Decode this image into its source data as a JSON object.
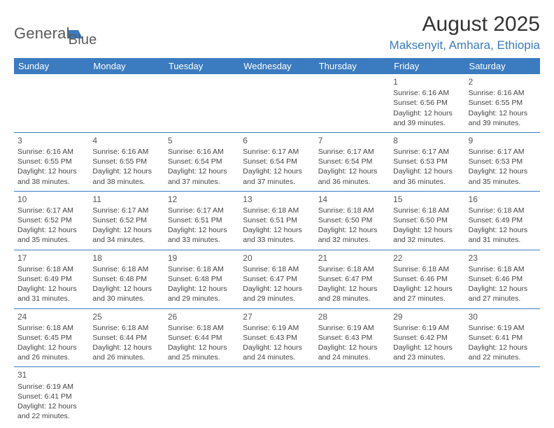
{
  "logo": {
    "general": "General",
    "blue": "Blue"
  },
  "title": "August 2025",
  "location": "Maksenyit, Amhara, Ethiopia",
  "colors": {
    "header_bg": "#3b7bbf",
    "header_text": "#ffffff",
    "text": "#444444",
    "border": "#3b7bbf",
    "logo_gray": "#5b5b5b",
    "logo_blue": "#3b7bbf"
  },
  "weekdays": [
    "Sunday",
    "Monday",
    "Tuesday",
    "Wednesday",
    "Thursday",
    "Friday",
    "Saturday"
  ],
  "weeks": [
    [
      null,
      null,
      null,
      null,
      null,
      {
        "d": "1",
        "sr": "Sunrise: 6:16 AM",
        "ss": "Sunset: 6:56 PM",
        "dl1": "Daylight: 12 hours",
        "dl2": "and 39 minutes."
      },
      {
        "d": "2",
        "sr": "Sunrise: 6:16 AM",
        "ss": "Sunset: 6:55 PM",
        "dl1": "Daylight: 12 hours",
        "dl2": "and 39 minutes."
      }
    ],
    [
      {
        "d": "3",
        "sr": "Sunrise: 6:16 AM",
        "ss": "Sunset: 6:55 PM",
        "dl1": "Daylight: 12 hours",
        "dl2": "and 38 minutes."
      },
      {
        "d": "4",
        "sr": "Sunrise: 6:16 AM",
        "ss": "Sunset: 6:55 PM",
        "dl1": "Daylight: 12 hours",
        "dl2": "and 38 minutes."
      },
      {
        "d": "5",
        "sr": "Sunrise: 6:16 AM",
        "ss": "Sunset: 6:54 PM",
        "dl1": "Daylight: 12 hours",
        "dl2": "and 37 minutes."
      },
      {
        "d": "6",
        "sr": "Sunrise: 6:17 AM",
        "ss": "Sunset: 6:54 PM",
        "dl1": "Daylight: 12 hours",
        "dl2": "and 37 minutes."
      },
      {
        "d": "7",
        "sr": "Sunrise: 6:17 AM",
        "ss": "Sunset: 6:54 PM",
        "dl1": "Daylight: 12 hours",
        "dl2": "and 36 minutes."
      },
      {
        "d": "8",
        "sr": "Sunrise: 6:17 AM",
        "ss": "Sunset: 6:53 PM",
        "dl1": "Daylight: 12 hours",
        "dl2": "and 36 minutes."
      },
      {
        "d": "9",
        "sr": "Sunrise: 6:17 AM",
        "ss": "Sunset: 6:53 PM",
        "dl1": "Daylight: 12 hours",
        "dl2": "and 35 minutes."
      }
    ],
    [
      {
        "d": "10",
        "sr": "Sunrise: 6:17 AM",
        "ss": "Sunset: 6:52 PM",
        "dl1": "Daylight: 12 hours",
        "dl2": "and 35 minutes."
      },
      {
        "d": "11",
        "sr": "Sunrise: 6:17 AM",
        "ss": "Sunset: 6:52 PM",
        "dl1": "Daylight: 12 hours",
        "dl2": "and 34 minutes."
      },
      {
        "d": "12",
        "sr": "Sunrise: 6:17 AM",
        "ss": "Sunset: 6:51 PM",
        "dl1": "Daylight: 12 hours",
        "dl2": "and 33 minutes."
      },
      {
        "d": "13",
        "sr": "Sunrise: 6:18 AM",
        "ss": "Sunset: 6:51 PM",
        "dl1": "Daylight: 12 hours",
        "dl2": "and 33 minutes."
      },
      {
        "d": "14",
        "sr": "Sunrise: 6:18 AM",
        "ss": "Sunset: 6:50 PM",
        "dl1": "Daylight: 12 hours",
        "dl2": "and 32 minutes."
      },
      {
        "d": "15",
        "sr": "Sunrise: 6:18 AM",
        "ss": "Sunset: 6:50 PM",
        "dl1": "Daylight: 12 hours",
        "dl2": "and 32 minutes."
      },
      {
        "d": "16",
        "sr": "Sunrise: 6:18 AM",
        "ss": "Sunset: 6:49 PM",
        "dl1": "Daylight: 12 hours",
        "dl2": "and 31 minutes."
      }
    ],
    [
      {
        "d": "17",
        "sr": "Sunrise: 6:18 AM",
        "ss": "Sunset: 6:49 PM",
        "dl1": "Daylight: 12 hours",
        "dl2": "and 31 minutes."
      },
      {
        "d": "18",
        "sr": "Sunrise: 6:18 AM",
        "ss": "Sunset: 6:48 PM",
        "dl1": "Daylight: 12 hours",
        "dl2": "and 30 minutes."
      },
      {
        "d": "19",
        "sr": "Sunrise: 6:18 AM",
        "ss": "Sunset: 6:48 PM",
        "dl1": "Daylight: 12 hours",
        "dl2": "and 29 minutes."
      },
      {
        "d": "20",
        "sr": "Sunrise: 6:18 AM",
        "ss": "Sunset: 6:47 PM",
        "dl1": "Daylight: 12 hours",
        "dl2": "and 29 minutes."
      },
      {
        "d": "21",
        "sr": "Sunrise: 6:18 AM",
        "ss": "Sunset: 6:47 PM",
        "dl1": "Daylight: 12 hours",
        "dl2": "and 28 minutes."
      },
      {
        "d": "22",
        "sr": "Sunrise: 6:18 AM",
        "ss": "Sunset: 6:46 PM",
        "dl1": "Daylight: 12 hours",
        "dl2": "and 27 minutes."
      },
      {
        "d": "23",
        "sr": "Sunrise: 6:18 AM",
        "ss": "Sunset: 6:46 PM",
        "dl1": "Daylight: 12 hours",
        "dl2": "and 27 minutes."
      }
    ],
    [
      {
        "d": "24",
        "sr": "Sunrise: 6:18 AM",
        "ss": "Sunset: 6:45 PM",
        "dl1": "Daylight: 12 hours",
        "dl2": "and 26 minutes."
      },
      {
        "d": "25",
        "sr": "Sunrise: 6:18 AM",
        "ss": "Sunset: 6:44 PM",
        "dl1": "Daylight: 12 hours",
        "dl2": "and 26 minutes."
      },
      {
        "d": "26",
        "sr": "Sunrise: 6:18 AM",
        "ss": "Sunset: 6:44 PM",
        "dl1": "Daylight: 12 hours",
        "dl2": "and 25 minutes."
      },
      {
        "d": "27",
        "sr": "Sunrise: 6:19 AM",
        "ss": "Sunset: 6:43 PM",
        "dl1": "Daylight: 12 hours",
        "dl2": "and 24 minutes."
      },
      {
        "d": "28",
        "sr": "Sunrise: 6:19 AM",
        "ss": "Sunset: 6:43 PM",
        "dl1": "Daylight: 12 hours",
        "dl2": "and 24 minutes."
      },
      {
        "d": "29",
        "sr": "Sunrise: 6:19 AM",
        "ss": "Sunset: 6:42 PM",
        "dl1": "Daylight: 12 hours",
        "dl2": "and 23 minutes."
      },
      {
        "d": "30",
        "sr": "Sunrise: 6:19 AM",
        "ss": "Sunset: 6:41 PM",
        "dl1": "Daylight: 12 hours",
        "dl2": "and 22 minutes."
      }
    ],
    [
      {
        "d": "31",
        "sr": "Sunrise: 6:19 AM",
        "ss": "Sunset: 6:41 PM",
        "dl1": "Daylight: 12 hours",
        "dl2": "and 22 minutes."
      },
      null,
      null,
      null,
      null,
      null,
      null
    ]
  ]
}
